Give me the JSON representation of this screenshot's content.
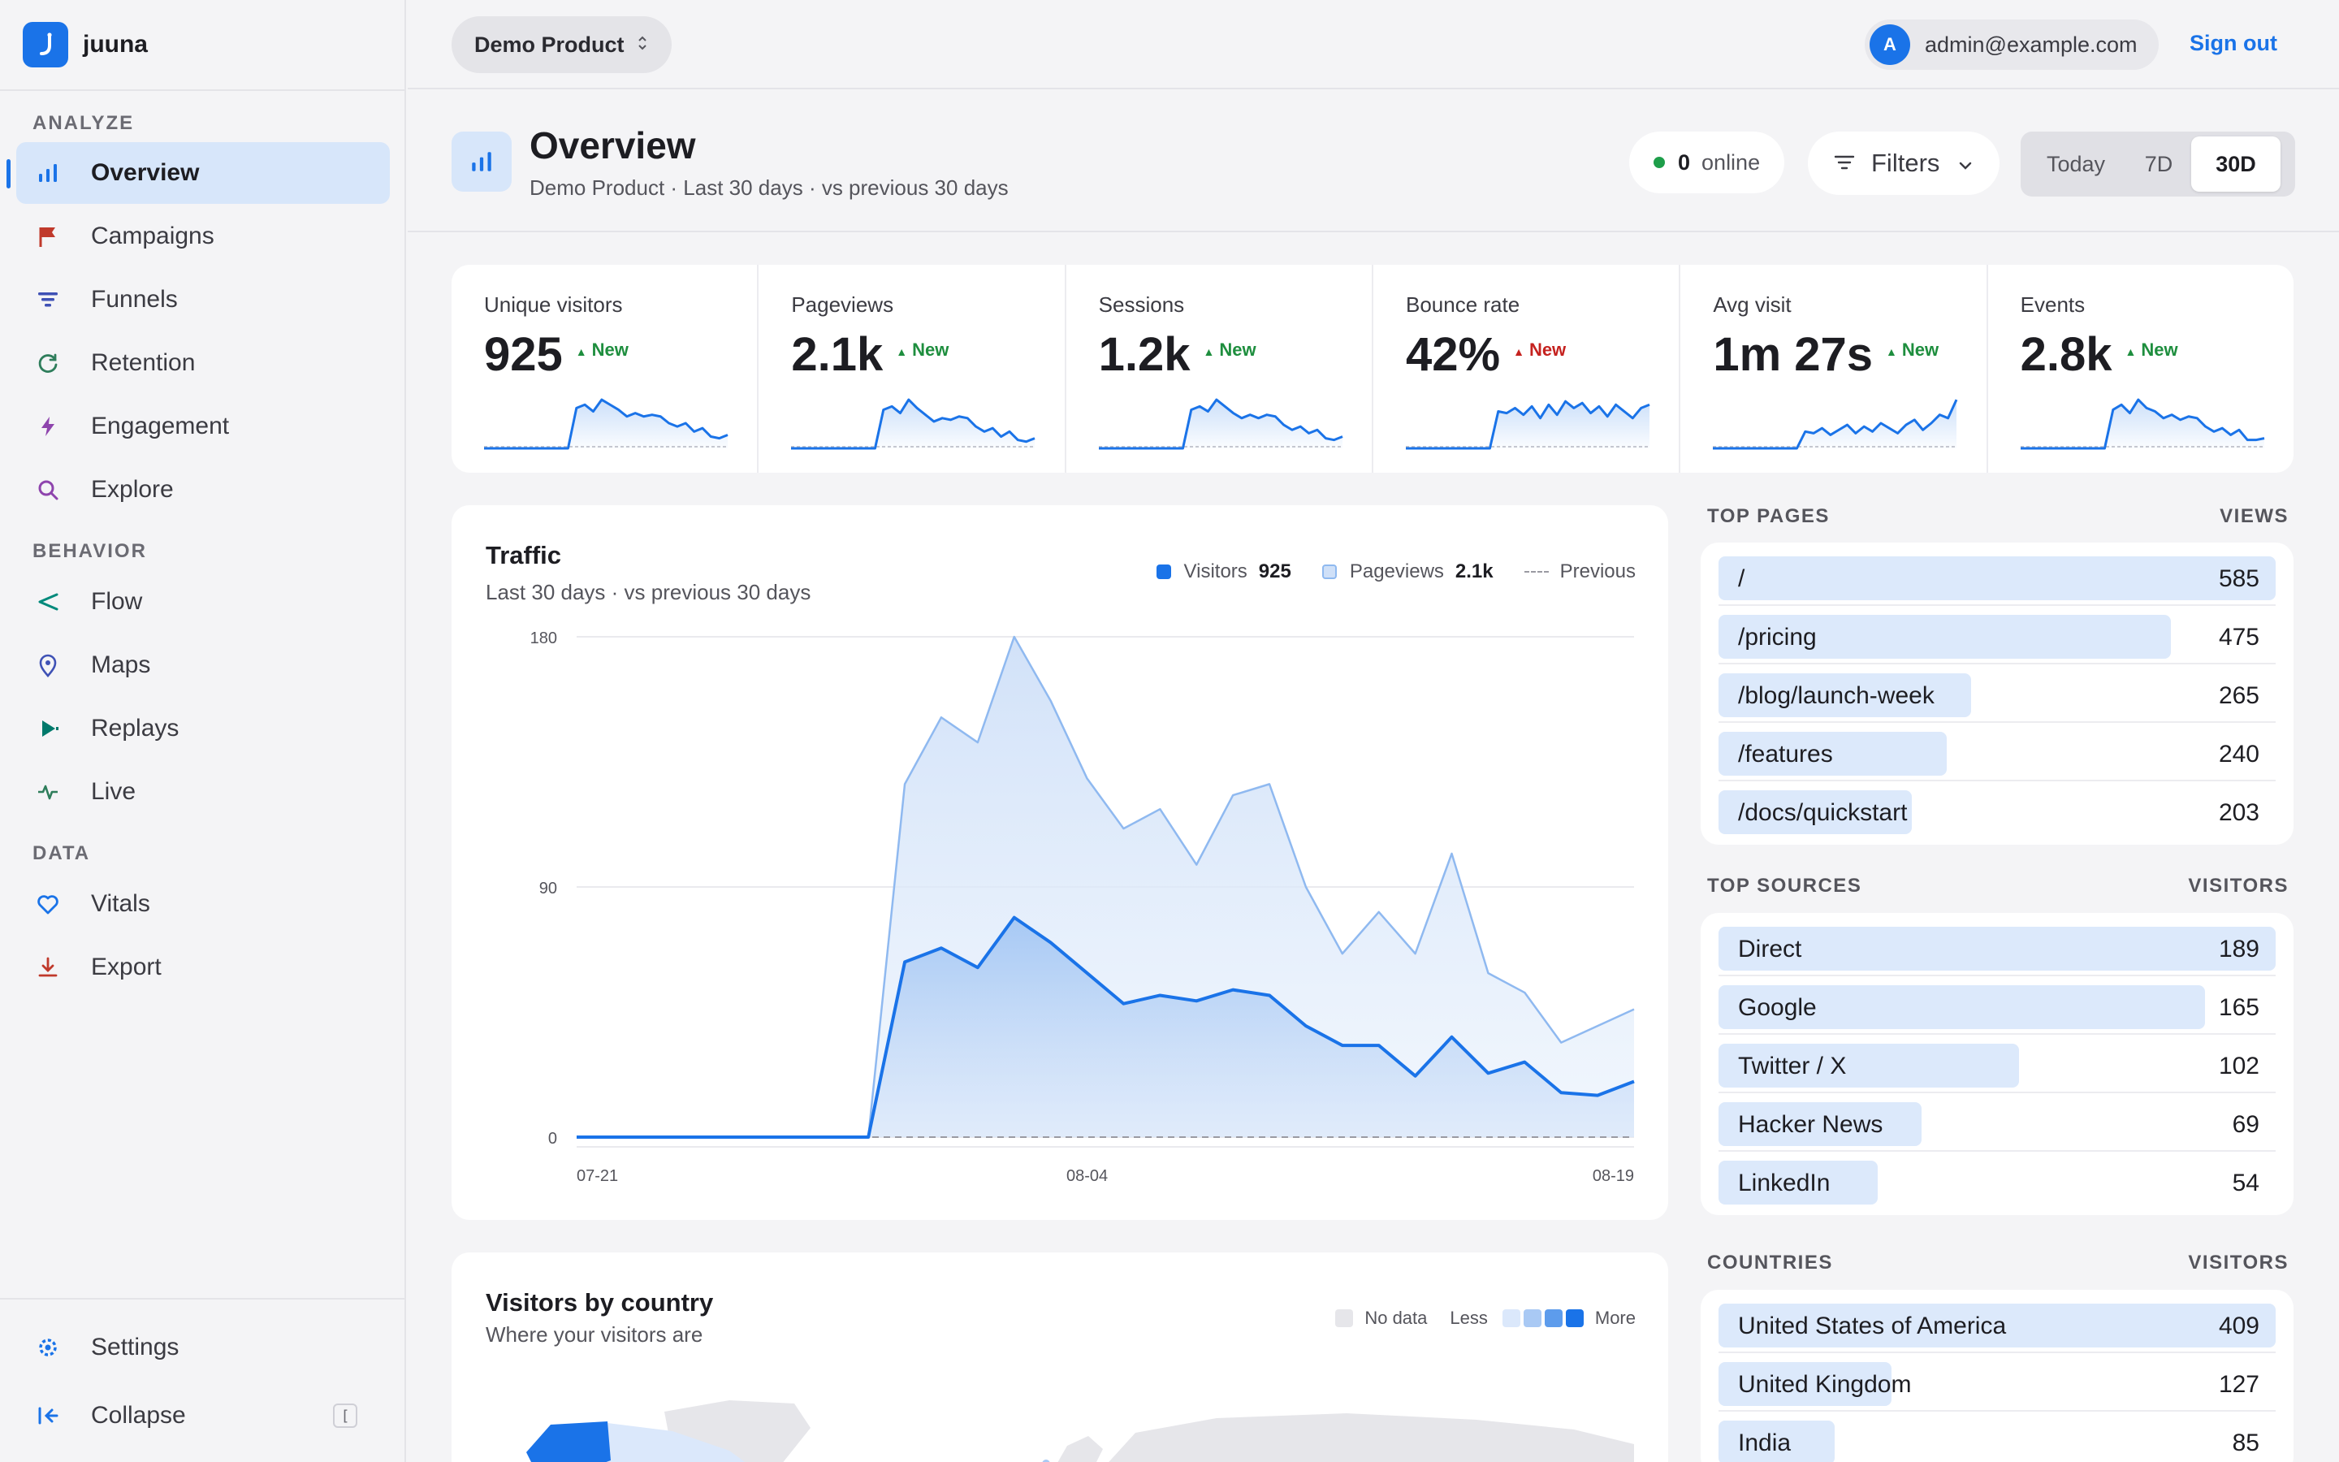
{
  "app": {
    "name": "juuna"
  },
  "sidebar": {
    "sections": [
      {
        "title": "ANALYZE",
        "items": [
          {
            "label": "Overview",
            "icon": "bar-chart-icon",
            "active": true
          },
          {
            "label": "Campaigns",
            "icon": "flag-icon"
          },
          {
            "label": "Funnels",
            "icon": "funnel-icon"
          },
          {
            "label": "Retention",
            "icon": "refresh-icon"
          },
          {
            "label": "Engagement",
            "icon": "bolt-icon"
          },
          {
            "label": "Explore",
            "icon": "search-icon"
          }
        ]
      },
      {
        "title": "BEHAVIOR",
        "items": [
          {
            "label": "Flow",
            "icon": "share-icon"
          },
          {
            "label": "Maps",
            "icon": "map-pin-icon"
          },
          {
            "label": "Replays",
            "icon": "play-icon"
          },
          {
            "label": "Live",
            "icon": "pulse-icon"
          }
        ]
      },
      {
        "title": "DATA",
        "items": [
          {
            "label": "Vitals",
            "icon": "heart-icon"
          },
          {
            "label": "Export",
            "icon": "download-icon"
          }
        ]
      }
    ],
    "settings_label": "Settings",
    "collapse_label": "Collapse",
    "collapse_shortcut": "["
  },
  "topbar": {
    "product": "Demo Product",
    "user_initial": "A",
    "user_email": "admin@example.com",
    "signout_label": "Sign out"
  },
  "header": {
    "title": "Overview",
    "subtitle": "Demo Product · Last 30 days · vs previous 30 days",
    "online_count": "0",
    "online_label": "online",
    "filters_label": "Filters",
    "ranges": [
      "Today",
      "7D",
      "30D"
    ],
    "selected_range": "30D"
  },
  "kpis": [
    {
      "label": "Unique visitors",
      "value": "925",
      "badge": "New",
      "trend": "up",
      "spark": [
        0,
        0,
        0,
        0,
        0,
        0,
        0,
        0,
        0,
        0,
        0,
        48,
        52,
        44,
        58,
        52,
        46,
        38,
        42,
        38,
        40,
        38,
        30,
        26,
        30,
        20,
        24,
        14,
        12,
        16
      ]
    },
    {
      "label": "Pageviews",
      "value": "2.1k",
      "badge": "New",
      "trend": "up",
      "spark": [
        0,
        0,
        0,
        0,
        0,
        0,
        0,
        0,
        0,
        0,
        0,
        46,
        50,
        42,
        58,
        48,
        40,
        32,
        36,
        34,
        38,
        36,
        26,
        20,
        24,
        14,
        20,
        10,
        8,
        12
      ]
    },
    {
      "label": "Sessions",
      "value": "1.2k",
      "badge": "New",
      "trend": "up",
      "spark": [
        0,
        0,
        0,
        0,
        0,
        0,
        0,
        0,
        0,
        0,
        0,
        46,
        50,
        44,
        58,
        50,
        42,
        36,
        40,
        36,
        40,
        38,
        28,
        22,
        26,
        18,
        22,
        12,
        10,
        14
      ]
    },
    {
      "label": "Bounce rate",
      "value": "42%",
      "badge": "New",
      "trend": "down",
      "spark": [
        0,
        0,
        0,
        0,
        0,
        0,
        0,
        0,
        0,
        0,
        0,
        44,
        42,
        48,
        40,
        50,
        36,
        52,
        40,
        56,
        48,
        54,
        42,
        50,
        38,
        52,
        44,
        36,
        48,
        52
      ]
    },
    {
      "label": "Avg visit",
      "value": "1m 27s",
      "badge": "New",
      "trend": "up",
      "spark": [
        0,
        0,
        0,
        0,
        0,
        0,
        0,
        0,
        0,
        0,
        0,
        20,
        18,
        24,
        16,
        22,
        28,
        18,
        26,
        20,
        30,
        24,
        18,
        28,
        34,
        22,
        30,
        40,
        36,
        58
      ]
    },
    {
      "label": "Events",
      "value": "2.8k",
      "badge": "New",
      "trend": "up",
      "spark": [
        0,
        0,
        0,
        0,
        0,
        0,
        0,
        0,
        0,
        0,
        0,
        46,
        52,
        42,
        58,
        48,
        44,
        36,
        40,
        34,
        38,
        36,
        26,
        20,
        24,
        16,
        22,
        10,
        10,
        12
      ]
    }
  ],
  "traffic": {
    "title": "Traffic",
    "subtitle": "Last 30 days · vs previous 30 days",
    "legend": {
      "visitors_label": "Visitors",
      "visitors_value": "925",
      "pageviews_label": "Pageviews",
      "pageviews_value": "2.1k",
      "previous_label": "Previous"
    }
  },
  "chart_data": {
    "type": "area",
    "x": [
      "07-21",
      "07-22",
      "07-23",
      "07-24",
      "07-25",
      "07-26",
      "07-27",
      "07-28",
      "07-29",
      "07-30",
      "07-31",
      "08-01",
      "08-02",
      "08-03",
      "08-04",
      "08-05",
      "08-06",
      "08-07",
      "08-08",
      "08-09",
      "08-10",
      "08-11",
      "08-12",
      "08-13",
      "08-14",
      "08-15",
      "08-16",
      "08-17",
      "08-18",
      "08-19"
    ],
    "x_tick_labels": [
      "07-21",
      "08-04",
      "08-19"
    ],
    "y_ticks": [
      0,
      90,
      180
    ],
    "ylim": [
      0,
      180
    ],
    "series": [
      {
        "name": "Pageviews",
        "values": [
          0,
          0,
          0,
          0,
          0,
          0,
          0,
          0,
          0,
          127,
          151,
          142,
          180,
          157,
          129,
          111,
          118,
          98,
          123,
          127,
          90,
          66,
          81,
          66,
          102,
          59,
          52,
          34,
          40,
          46
        ]
      },
      {
        "name": "Visitors",
        "values": [
          0,
          0,
          0,
          0,
          0,
          0,
          0,
          0,
          0,
          63,
          68,
          61,
          79,
          70,
          59,
          48,
          51,
          49,
          53,
          51,
          40,
          33,
          33,
          22,
          36,
          23,
          27,
          16,
          15,
          20
        ]
      },
      {
        "name": "Previous",
        "values": [
          0,
          0,
          0,
          0,
          0,
          0,
          0,
          0,
          0,
          0,
          0,
          0,
          0,
          0,
          0,
          0,
          0,
          0,
          0,
          0,
          0,
          0,
          0,
          0,
          0,
          0,
          0,
          0,
          0,
          0
        ]
      }
    ],
    "grid": true,
    "colors": {
      "visitors": "#1a73e8",
      "pageviews": "#a6c8f5",
      "previous": "#9a9aa2"
    }
  },
  "map": {
    "title": "Visitors by country",
    "subtitle": "Where your visitors are",
    "legend": {
      "no_data": "No data",
      "less": "Less",
      "more": "More"
    }
  },
  "top_pages": {
    "title": "TOP PAGES",
    "metric": "VIEWS",
    "rows": [
      {
        "name": "/",
        "value": 585
      },
      {
        "name": "/pricing",
        "value": 475
      },
      {
        "name": "/blog/launch-week",
        "value": 265
      },
      {
        "name": "/features",
        "value": 240
      },
      {
        "name": "/docs/quickstart",
        "value": 203
      }
    ]
  },
  "top_sources": {
    "title": "TOP SOURCES",
    "metric": "VISITORS",
    "rows": [
      {
        "name": "Direct",
        "value": 189
      },
      {
        "name": "Google",
        "value": 165
      },
      {
        "name": "Twitter / X",
        "value": 102
      },
      {
        "name": "Hacker News",
        "value": 69
      },
      {
        "name": "LinkedIn",
        "value": 54
      }
    ]
  },
  "countries": {
    "title": "COUNTRIES",
    "metric": "VISITORS",
    "rows": [
      {
        "name": "United States of America",
        "value": 409
      },
      {
        "name": "United Kingdom",
        "value": 127
      },
      {
        "name": "India",
        "value": 85
      }
    ]
  }
}
